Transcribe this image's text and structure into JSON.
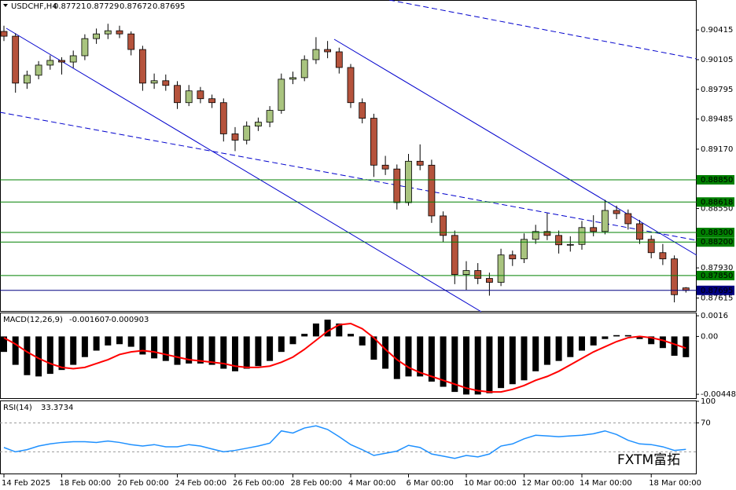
{
  "chart_data": [
    {
      "type": "candlestick",
      "title": "USDCHF,H4",
      "categories": [
        "14 Feb 2025",
        null,
        null,
        null,
        null,
        "18 Feb 00:00",
        null,
        null,
        null,
        null,
        "20 Feb 00:00",
        null,
        null,
        null,
        null,
        "24 Feb 00:00",
        null,
        null,
        null,
        null,
        "26 Feb 00:00",
        null,
        null,
        null,
        null,
        "28 Feb 00:00",
        null,
        null,
        null,
        null,
        "4 Mar 00:00",
        null,
        null,
        null,
        null,
        "6 Mar 00:00",
        null,
        null,
        null,
        null,
        "10 Mar 00:00",
        null,
        null,
        null,
        null,
        "12 Mar 00:00",
        null,
        null,
        null,
        null,
        "14 Mar 00:00",
        null,
        null,
        null,
        null,
        null,
        "18 Mar 00:00",
        null,
        null,
        null
      ],
      "candles": [
        [
          0.904,
          0.9046,
          0.903,
          0.9035
        ],
        [
          0.9035,
          0.9038,
          0.8976,
          0.8986
        ],
        [
          0.8986,
          0.8999,
          0.898,
          0.89942
        ],
        [
          0.89942,
          0.9009,
          0.899,
          0.90048
        ],
        [
          0.90048,
          0.9015,
          0.9,
          0.90097
        ],
        [
          0.90097,
          0.9013,
          0.8995,
          0.9008
        ],
        [
          0.9008,
          0.902,
          0.9002,
          0.90146
        ],
        [
          0.90146,
          0.9037,
          0.901,
          0.90325
        ],
        [
          0.90325,
          0.9043,
          0.9027,
          0.90374
        ],
        [
          0.90374,
          0.9048,
          0.9032,
          0.90407
        ],
        [
          0.90407,
          0.9046,
          0.9033,
          0.90374
        ],
        [
          0.90374,
          0.904,
          0.9015,
          0.90211
        ],
        [
          0.90211,
          0.9025,
          0.8978,
          0.8986
        ],
        [
          0.8986,
          0.8996,
          0.898,
          0.89885
        ],
        [
          0.89885,
          0.8995,
          0.8978,
          0.89836
        ],
        [
          0.89836,
          0.8988,
          0.8959,
          0.89656
        ],
        [
          0.89656,
          0.8984,
          0.8962,
          0.89779
        ],
        [
          0.89779,
          0.8982,
          0.8965,
          0.89697
        ],
        [
          0.89697,
          0.8974,
          0.896,
          0.89656
        ],
        [
          0.89656,
          0.897,
          0.8925,
          0.8933
        ],
        [
          0.8933,
          0.894,
          0.8915,
          0.89264
        ],
        [
          0.89264,
          0.8946,
          0.8922,
          0.89411
        ],
        [
          0.89411,
          0.895,
          0.8936,
          0.89452
        ],
        [
          0.89452,
          0.8962,
          0.894,
          0.89575
        ],
        [
          0.89575,
          0.8996,
          0.8954,
          0.89901
        ],
        [
          0.89901,
          0.8998,
          0.8985,
          0.89917
        ],
        [
          0.89917,
          0.9015,
          0.8988,
          0.90105
        ],
        [
          0.90105,
          0.9034,
          0.9006,
          0.90211
        ],
        [
          0.90211,
          0.903,
          0.9012,
          0.90187
        ],
        [
          0.90187,
          0.9023,
          0.8996,
          0.90023
        ],
        [
          0.90023,
          0.9006,
          0.896,
          0.89656
        ],
        [
          0.89656,
          0.897,
          0.8944,
          0.89493
        ],
        [
          0.89493,
          0.8954,
          0.8888,
          0.89003
        ],
        [
          0.89003,
          0.891,
          0.889,
          0.88963
        ],
        [
          0.88963,
          0.8901,
          0.8854,
          0.88612
        ],
        [
          0.88612,
          0.8912,
          0.8858,
          0.89044
        ],
        [
          0.89044,
          0.8922,
          0.8895,
          0.89003
        ],
        [
          0.89003,
          0.8906,
          0.884,
          0.88473
        ],
        [
          0.88473,
          0.8852,
          0.882,
          0.88269
        ],
        [
          0.88269,
          0.8832,
          0.8776,
          0.87861
        ],
        [
          0.87861,
          0.88,
          0.877,
          0.87902
        ],
        [
          0.87902,
          0.8798,
          0.8776,
          0.8782
        ],
        [
          0.8782,
          0.8788,
          0.8764,
          0.87779
        ],
        [
          0.87779,
          0.8813,
          0.8774,
          0.88065
        ],
        [
          0.88065,
          0.8811,
          0.8795,
          0.88024
        ],
        [
          0.88024,
          0.8829,
          0.8798,
          0.88228
        ],
        [
          0.88228,
          0.8838,
          0.8818,
          0.8831
        ],
        [
          0.8831,
          0.885,
          0.8822,
          0.88269
        ],
        [
          0.88269,
          0.8832,
          0.8808,
          0.88171
        ],
        [
          0.88171,
          0.8826,
          0.881,
          0.88175
        ],
        [
          0.88175,
          0.8842,
          0.8812,
          0.88351
        ],
        [
          0.88351,
          0.8848,
          0.8826,
          0.8831
        ],
        [
          0.8831,
          0.8864,
          0.8828,
          0.8853
        ],
        [
          0.8853,
          0.8858,
          0.8844,
          0.88497
        ],
        [
          0.88497,
          0.8854,
          0.8833,
          0.88391
        ],
        [
          0.88391,
          0.8843,
          0.8818,
          0.88228
        ],
        [
          0.88228,
          0.8827,
          0.8803,
          0.88089
        ],
        [
          0.88089,
          0.8818,
          0.8796,
          0.88024
        ],
        [
          0.88024,
          0.8806,
          0.8757,
          0.8765
        ],
        [
          0.87721,
          0.87729,
          0.87672,
          0.87695
        ]
      ],
      "bull_color": "#a9c47f",
      "bear_color": "#b5533c",
      "ylim": [
        0.8748,
        0.9072
      ],
      "yticks": [
        0.90415,
        0.90105,
        0.89795,
        0.89485,
        {
          "value": 0.8917,
          "label": "0.89170"
        },
        {
          "value": 0.8855,
          "label": "0.88550"
        },
        {
          "value": 0.8793,
          "label": "0.87930"
        },
        0.87615
      ],
      "levels": [
        {
          "value": 0.8885,
          "label": "0.88850"
        },
        0.88618,
        {
          "value": 0.883,
          "label": "0.88300"
        },
        {
          "value": 0.882,
          "label": "0.88200"
        },
        {
          "value": 0.8785,
          "label": "0.87850"
        }
      ],
      "level_color": "#008000",
      "price_line_color": "#000080",
      "watermark": "FXTM富拓"
    },
    {
      "type": "macd",
      "title": "MACD(12,26,9)",
      "series": [
        {
          "color": "#000000",
          "values": [
            -0.0012,
            -0.0022,
            -0.003,
            -0.0031,
            -0.0029,
            -0.0026,
            -0.0022,
            -0.0016,
            -0.0011,
            -0.0007,
            -0.0006,
            -0.0008,
            -0.0014,
            -0.0017,
            -0.0019,
            -0.0022,
            -0.0021,
            -0.0021,
            -0.0022,
            -0.0025,
            -0.0027,
            -0.0025,
            -0.0023,
            -0.0019,
            -0.0012,
            -0.0006,
            0.0002,
            0.001,
            0.0013,
            0.001,
            0.0002,
            -0.0007,
            -0.0018,
            -0.0025,
            -0.0033,
            -0.0031,
            -0.0031,
            -0.0035,
            -0.0039,
            -0.0043,
            -0.0045,
            -0.0045,
            -0.0044,
            -0.004,
            -0.0037,
            -0.0034,
            -0.0027,
            -0.0022,
            -0.0019,
            -0.0016,
            -0.0011,
            -0.0007,
            -0.0002,
            0.0001,
            0.0001,
            -0.0002,
            -0.0006,
            -0.0009,
            -0.0015,
            -0.001607
          ]
        },
        {
          "color": "#ff0000",
          "values": [
            -0.0001,
            -0.0006,
            -0.0012,
            -0.0017,
            -0.0021,
            -0.0024,
            -0.0025,
            -0.0024,
            -0.0021,
            -0.0018,
            -0.0014,
            -0.0012,
            -0.0011,
            -0.0012,
            -0.0014,
            -0.0016,
            -0.0018,
            -0.0019,
            -0.002,
            -0.0021,
            -0.0023,
            -0.0024,
            -0.0024,
            -0.0023,
            -0.002,
            -0.0016,
            -0.001,
            -0.0003,
            0.0004,
            0.0009,
            0.001,
            0.0006,
            -0.0001,
            -0.001,
            -0.0018,
            -0.0024,
            -0.0028,
            -0.0031,
            -0.0034,
            -0.0037,
            -0.004,
            -0.0042,
            -0.0043,
            -0.0043,
            -0.0041,
            -0.0038,
            -0.0034,
            -0.0031,
            -0.0027,
            -0.0022,
            -0.0017,
            -0.0012,
            -0.0008,
            -0.0004,
            -0.0001,
            0,
            -0.0001,
            -0.0003,
            -0.0006,
            -0.000903
          ]
        }
      ],
      "ylim": [
        -0.00478,
        0.00179
      ],
      "yticks": [
        0.0016,
        {
          "value": 0,
          "label": "0.00"
        },
        -0.004482
      ]
    },
    {
      "type": "line",
      "title": "RSI(14)",
      "series": [
        {
          "color": "#1e90ff",
          "values": [
            36,
            30,
            33,
            38,
            41,
            43,
            44,
            44,
            43,
            45,
            43,
            40,
            38,
            40,
            37,
            37,
            40,
            38,
            34,
            30,
            32,
            35,
            38,
            42,
            59,
            56,
            63,
            66,
            61,
            51,
            40,
            33,
            25,
            28,
            31,
            39,
            36,
            27,
            24,
            21,
            25,
            23,
            27,
            38,
            41,
            48,
            53,
            52,
            51,
            52,
            53,
            55,
            59,
            54,
            46,
            41,
            40,
            37,
            32,
            33.3734
          ]
        }
      ],
      "ylim": [
        0,
        100
      ],
      "yticks": [
        100,
        70
      ],
      "levels": [
        70,
        30
      ]
    }
  ]
}
